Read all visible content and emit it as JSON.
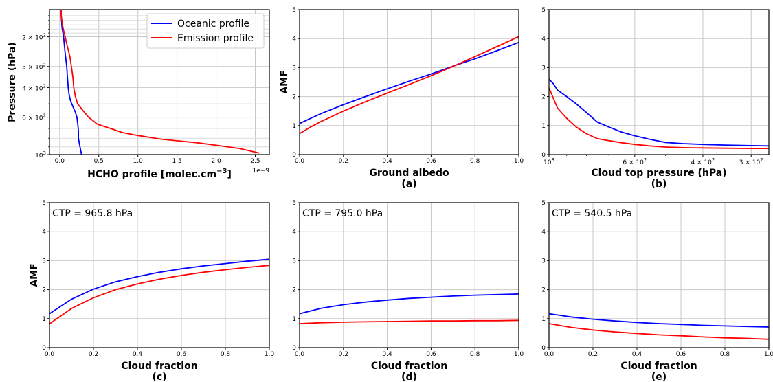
{
  "figure": {
    "legend": [
      {
        "name": "Oceanic profile",
        "color": "#0000ff"
      },
      {
        "name": "Emission profile",
        "color": "#ff0000"
      }
    ]
  },
  "chart_data": [
    {
      "id": "profile",
      "type": "line",
      "xlabel": "HCHO profile [molec.cm$^{-3}$]",
      "xlabel_main": "HCHO profile [molec.cm",
      "xlabel_sup": "−3",
      "xlabel_end": "]",
      "ylabel": "Pressure (hPa)",
      "panel_label": "",
      "x_offset_text": "1e−9",
      "xscale_note": "values in units of 1e-9",
      "xlim": [
        -0.13,
        2.68
      ],
      "ylim": [
        1000,
        138
      ],
      "yscale": "log",
      "y_inverted": true,
      "grid": true,
      "legend_position": "upper-right",
      "xticks": [
        0.0,
        0.5,
        1.0,
        1.5,
        2.0,
        2.5
      ],
      "xtick_labels": [
        "0.0",
        "0.5",
        "1.0",
        "1.5",
        "2.0",
        "2.5"
      ],
      "yticks": [
        200,
        300,
        400,
        600,
        1000
      ],
      "ytick_labels": [
        {
          "base": "2 × 10",
          "exp": "2"
        },
        {
          "base": "3 × 10",
          "exp": "2"
        },
        {
          "base": "4 × 10",
          "exp": "2"
        },
        {
          "base": "6 × 10",
          "exp": "2"
        },
        {
          "base": "10",
          "exp": "3"
        }
      ],
      "series": [
        {
          "name": "Oceanic profile",
          "color": "#0000ff",
          "points": [
            [
              0.02,
              138
            ],
            [
              0.02,
              150
            ],
            [
              0.03,
              175
            ],
            [
              0.05,
              200
            ],
            [
              0.07,
              250
            ],
            [
              0.09,
              300
            ],
            [
              0.1,
              350
            ],
            [
              0.11,
              400
            ],
            [
              0.12,
              440
            ],
            [
              0.14,
              480
            ],
            [
              0.17,
              520
            ],
            [
              0.2,
              560
            ],
            [
              0.22,
              600
            ],
            [
              0.23,
              650
            ],
            [
              0.24,
              720
            ],
            [
              0.24,
              800
            ],
            [
              0.26,
              900
            ],
            [
              0.28,
              1000
            ]
          ]
        },
        {
          "name": "Emission profile",
          "color": "#ff0000",
          "points": [
            [
              0.02,
              138
            ],
            [
              0.02,
              150
            ],
            [
              0.04,
              175
            ],
            [
              0.07,
              200
            ],
            [
              0.1,
              230
            ],
            [
              0.13,
              260
            ],
            [
              0.15,
              300
            ],
            [
              0.17,
              350
            ],
            [
              0.18,
              400
            ],
            [
              0.2,
              450
            ],
            [
              0.23,
              500
            ],
            [
              0.3,
              550
            ],
            [
              0.37,
              600
            ],
            [
              0.48,
              660
            ],
            [
              0.65,
              700
            ],
            [
              0.8,
              740
            ],
            [
              1.0,
              770
            ],
            [
              1.3,
              810
            ],
            [
              1.75,
              850
            ],
            [
              2.0,
              880
            ],
            [
              2.3,
              920
            ],
            [
              2.55,
              980
            ]
          ]
        }
      ]
    },
    {
      "id": "a",
      "type": "line",
      "xlabel": "Ground albedo",
      "ylabel": "AMF",
      "panel_label": "(a)",
      "xlim": [
        0,
        1
      ],
      "ylim": [
        0,
        5
      ],
      "grid": true,
      "xticks": [
        0.0,
        0.2,
        0.4,
        0.6,
        0.8,
        1.0
      ],
      "xtick_labels": [
        "0.0",
        "0.2",
        "0.4",
        "0.6",
        "0.8",
        "1.0"
      ],
      "yticks": [
        0,
        1,
        2,
        3,
        4,
        5
      ],
      "ytick_labels": [
        "0",
        "1",
        "2",
        "3",
        "4",
        "5"
      ],
      "series": [
        {
          "name": "Oceanic profile",
          "color": "#0000ff",
          "points": [
            [
              0,
              1.07
            ],
            [
              0.05,
              1.25
            ],
            [
              0.1,
              1.42
            ],
            [
              0.2,
              1.72
            ],
            [
              0.3,
              2.0
            ],
            [
              0.4,
              2.27
            ],
            [
              0.5,
              2.53
            ],
            [
              0.6,
              2.78
            ],
            [
              0.7,
              3.05
            ],
            [
              0.8,
              3.3
            ],
            [
              0.9,
              3.58
            ],
            [
              1.0,
              3.87
            ]
          ]
        },
        {
          "name": "Emission profile",
          "color": "#ff0000",
          "points": [
            [
              0,
              0.72
            ],
            [
              0.05,
              0.95
            ],
            [
              0.1,
              1.15
            ],
            [
              0.2,
              1.5
            ],
            [
              0.3,
              1.82
            ],
            [
              0.4,
              2.12
            ],
            [
              0.5,
              2.42
            ],
            [
              0.6,
              2.72
            ],
            [
              0.7,
              3.04
            ],
            [
              0.8,
              3.38
            ],
            [
              0.9,
              3.72
            ],
            [
              1.0,
              4.07
            ]
          ]
        }
      ]
    },
    {
      "id": "b",
      "type": "line",
      "xlabel": "Cloud  top pressure (hPa)",
      "ylabel": "",
      "panel_label": "(b)",
      "xlim": [
        1000,
        270
      ],
      "xscale": "log",
      "x_inverted": true,
      "ylim": [
        0,
        5
      ],
      "grid": true,
      "xticks": [
        1000,
        600,
        400,
        300
      ],
      "xtick_labels": [
        {
          "base": "10",
          "exp": "3"
        },
        {
          "base": "6 × 10",
          "exp": "2"
        },
        {
          "base": "4 × 10",
          "exp": "2"
        },
        {
          "base": "3 × 10",
          "exp": "2"
        }
      ],
      "yticks": [
        0,
        1,
        2,
        3,
        4,
        5
      ],
      "ytick_labels": [
        "0",
        "1",
        "2",
        "3",
        "4",
        "5"
      ],
      "series": [
        {
          "name": "Oceanic profile",
          "color": "#0000ff",
          "points": [
            [
              1000,
              2.6
            ],
            [
              975,
              2.45
            ],
            [
              950,
              2.22
            ],
            [
              900,
              2.0
            ],
            [
              850,
              1.75
            ],
            [
              800,
              1.45
            ],
            [
              750,
              1.12
            ],
            [
              700,
              0.95
            ],
            [
              650,
              0.78
            ],
            [
              600,
              0.65
            ],
            [
              550,
              0.53
            ],
            [
              500,
              0.42
            ],
            [
              450,
              0.38
            ],
            [
              400,
              0.35
            ],
            [
              350,
              0.33
            ],
            [
              300,
              0.31
            ],
            [
              270,
              0.3
            ]
          ]
        },
        {
          "name": "Emission profile",
          "color": "#ff0000",
          "points": [
            [
              1000,
              2.3
            ],
            [
              975,
              1.95
            ],
            [
              950,
              1.6
            ],
            [
              900,
              1.25
            ],
            [
              850,
              0.95
            ],
            [
              800,
              0.72
            ],
            [
              750,
              0.55
            ],
            [
              700,
              0.48
            ],
            [
              650,
              0.41
            ],
            [
              600,
              0.35
            ],
            [
              550,
              0.3
            ],
            [
              500,
              0.26
            ],
            [
              450,
              0.24
            ],
            [
              400,
              0.23
            ],
            [
              350,
              0.22
            ],
            [
              300,
              0.21
            ],
            [
              270,
              0.21
            ]
          ]
        }
      ]
    },
    {
      "id": "c",
      "type": "line",
      "xlabel": "Cloud fraction",
      "ylabel": "AMF",
      "panel_label": "(c)",
      "annotation": "CTP = 965.8 hPa",
      "xlim": [
        0,
        1
      ],
      "ylim": [
        0,
        5
      ],
      "grid": true,
      "xticks": [
        0.0,
        0.2,
        0.4,
        0.6,
        0.8,
        1.0
      ],
      "xtick_labels": [
        "0.0",
        "0.2",
        "0.4",
        "0.6",
        "0.8",
        "1.0"
      ],
      "yticks": [
        0,
        1,
        2,
        3,
        4,
        5
      ],
      "ytick_labels": [
        "0",
        "1",
        "2",
        "3",
        "4",
        "5"
      ],
      "series": [
        {
          "name": "Oceanic profile",
          "color": "#0000ff",
          "points": [
            [
              0,
              1.17
            ],
            [
              0.1,
              1.67
            ],
            [
              0.2,
              2.02
            ],
            [
              0.3,
              2.27
            ],
            [
              0.4,
              2.45
            ],
            [
              0.5,
              2.6
            ],
            [
              0.6,
              2.72
            ],
            [
              0.7,
              2.82
            ],
            [
              0.8,
              2.9
            ],
            [
              0.9,
              2.98
            ],
            [
              1.0,
              3.05
            ]
          ]
        },
        {
          "name": "Emission profile",
          "color": "#ff0000",
          "points": [
            [
              0,
              0.82
            ],
            [
              0.1,
              1.35
            ],
            [
              0.2,
              1.72
            ],
            [
              0.3,
              2.0
            ],
            [
              0.4,
              2.2
            ],
            [
              0.5,
              2.36
            ],
            [
              0.6,
              2.49
            ],
            [
              0.7,
              2.6
            ],
            [
              0.8,
              2.69
            ],
            [
              0.9,
              2.77
            ],
            [
              1.0,
              2.84
            ]
          ]
        }
      ]
    },
    {
      "id": "d",
      "type": "line",
      "xlabel": "Cloud fraction",
      "ylabel": "",
      "panel_label": "(d)",
      "annotation": "CTP = 795.0 hPa",
      "xlim": [
        0,
        1
      ],
      "ylim": [
        0,
        5
      ],
      "grid": true,
      "xticks": [
        0.0,
        0.2,
        0.4,
        0.6,
        0.8,
        1.0
      ],
      "xtick_labels": [
        "0.0",
        "0.2",
        "0.4",
        "0.6",
        "0.8",
        "1.0"
      ],
      "yticks": [
        0,
        1,
        2,
        3,
        4,
        5
      ],
      "ytick_labels": [
        "0",
        "1",
        "2",
        "3",
        "4",
        "5"
      ],
      "series": [
        {
          "name": "Oceanic profile",
          "color": "#0000ff",
          "points": [
            [
              0,
              1.17
            ],
            [
              0.1,
              1.36
            ],
            [
              0.2,
              1.48
            ],
            [
              0.3,
              1.57
            ],
            [
              0.4,
              1.64
            ],
            [
              0.5,
              1.7
            ],
            [
              0.6,
              1.74
            ],
            [
              0.7,
              1.78
            ],
            [
              0.8,
              1.81
            ],
            [
              0.9,
              1.83
            ],
            [
              1.0,
              1.85
            ]
          ]
        },
        {
          "name": "Emission profile",
          "color": "#ff0000",
          "points": [
            [
              0,
              0.83
            ],
            [
              0.1,
              0.86
            ],
            [
              0.2,
              0.88
            ],
            [
              0.3,
              0.89
            ],
            [
              0.4,
              0.9
            ],
            [
              0.5,
              0.91
            ],
            [
              0.6,
              0.92
            ],
            [
              0.7,
              0.92
            ],
            [
              0.8,
              0.93
            ],
            [
              0.9,
              0.93
            ],
            [
              1.0,
              0.94
            ]
          ]
        }
      ]
    },
    {
      "id": "e",
      "type": "line",
      "xlabel": "Cloud fraction",
      "ylabel": "",
      "panel_label": "(e)",
      "annotation": "CTP = 540.5 hPa",
      "xlim": [
        0,
        1
      ],
      "ylim": [
        0,
        5
      ],
      "grid": true,
      "xticks": [
        0.0,
        0.2,
        0.4,
        0.6,
        0.8,
        1.0
      ],
      "xtick_labels": [
        "0.0",
        "0.2",
        "0.4",
        "0.6",
        "0.8",
        "1.0"
      ],
      "yticks": [
        0,
        1,
        2,
        3,
        4,
        5
      ],
      "ytick_labels": [
        "0",
        "1",
        "2",
        "3",
        "4",
        "5"
      ],
      "series": [
        {
          "name": "Oceanic profile",
          "color": "#0000ff",
          "points": [
            [
              0,
              1.17
            ],
            [
              0.1,
              1.06
            ],
            [
              0.2,
              0.98
            ],
            [
              0.3,
              0.92
            ],
            [
              0.4,
              0.87
            ],
            [
              0.5,
              0.83
            ],
            [
              0.6,
              0.8
            ],
            [
              0.7,
              0.77
            ],
            [
              0.8,
              0.75
            ],
            [
              0.9,
              0.73
            ],
            [
              1.0,
              0.71
            ]
          ]
        },
        {
          "name": "Emission profile",
          "color": "#ff0000",
          "points": [
            [
              0,
              0.83
            ],
            [
              0.1,
              0.7
            ],
            [
              0.2,
              0.61
            ],
            [
              0.3,
              0.54
            ],
            [
              0.4,
              0.49
            ],
            [
              0.5,
              0.44
            ],
            [
              0.6,
              0.41
            ],
            [
              0.7,
              0.37
            ],
            [
              0.8,
              0.34
            ],
            [
              0.9,
              0.32
            ],
            [
              1.0,
              0.29
            ]
          ]
        }
      ]
    }
  ]
}
